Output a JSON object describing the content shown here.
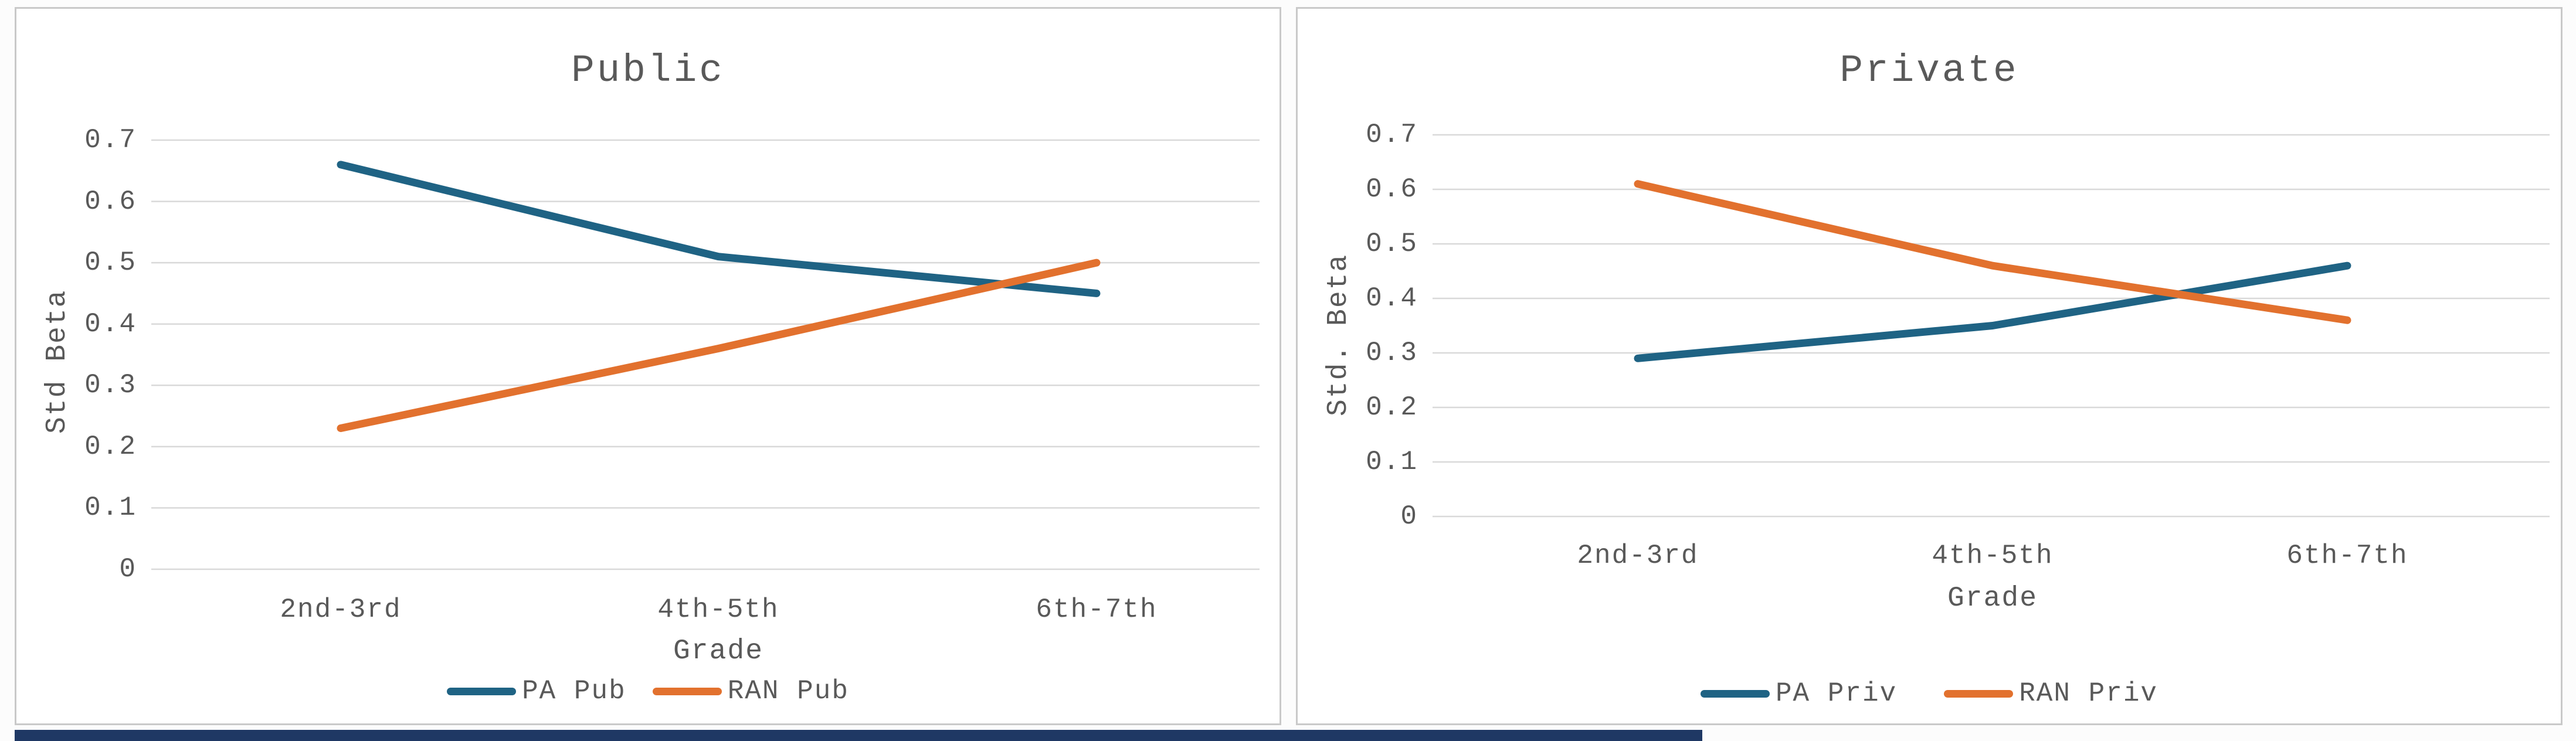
{
  "page": {
    "text_color": "#595959",
    "grid_color": "#d9d9d9",
    "panel_border_color": "#c9c9c9",
    "background": "#fcfcfc",
    "bottom_strip_color": "#1f3864"
  },
  "chart_data": [
    {
      "type": "line",
      "title": "Public",
      "xlabel": "Grade",
      "ylabel": "Std Beta",
      "categories": [
        "2nd-3rd",
        "4th-5th",
        "6th-7th"
      ],
      "series": [
        {
          "name": "PA Pub",
          "color": "#1f6384",
          "values": [
            0.66,
            0.51,
            0.45
          ]
        },
        {
          "name": "RAN Pub",
          "color": "#e2712e",
          "values": [
            0.23,
            0.36,
            0.5
          ]
        }
      ],
      "ylim": [
        0,
        0.7
      ],
      "yticks": [
        0,
        0.1,
        0.2,
        0.3,
        0.4,
        0.5,
        0.6,
        0.7
      ],
      "grid": "horizontal",
      "legend_position": "bottom"
    },
    {
      "type": "line",
      "title": "Private",
      "xlabel": "Grade",
      "ylabel": "Std. Beta",
      "categories": [
        "2nd-3rd",
        "4th-5th",
        "6th-7th"
      ],
      "series": [
        {
          "name": "PA Priv",
          "color": "#1f6384",
          "values": [
            0.29,
            0.35,
            0.46
          ]
        },
        {
          "name": "RAN Priv",
          "color": "#e2712e",
          "values": [
            0.61,
            0.46,
            0.36
          ]
        }
      ],
      "ylim": [
        0,
        0.7
      ],
      "yticks": [
        0,
        0.1,
        0.2,
        0.3,
        0.4,
        0.5,
        0.6,
        0.7
      ],
      "grid": "horizontal",
      "legend_position": "bottom"
    }
  ]
}
